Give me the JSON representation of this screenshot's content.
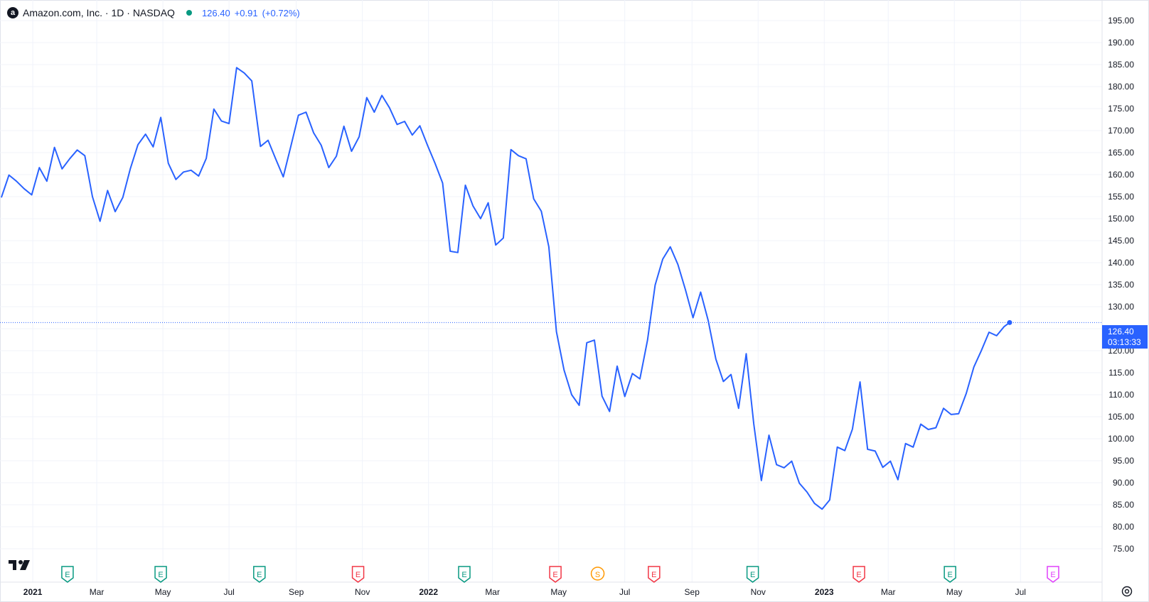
{
  "header": {
    "logo_letter": "a",
    "title": "Amazon.com, Inc. · 1D · NASDAQ",
    "price": "126.40",
    "change": "+0.91",
    "change_pct": "(+0.72%)"
  },
  "price_tag": {
    "price": "126.40",
    "countdown": "03:13:33"
  },
  "colors": {
    "line": "#2962ff",
    "grid": "#f0f3fa",
    "earnings_pos": "#089981",
    "earnings_neg": "#f23645",
    "split": "#ff9800",
    "future": "#e040fb"
  },
  "chart_data": {
    "type": "line",
    "title": "Amazon.com, Inc. · 1D · NASDAQ",
    "xlabel": "",
    "ylabel": "",
    "ylim": [
      75,
      195
    ],
    "yticks": [
      195,
      190,
      185,
      180,
      175,
      170,
      165,
      160,
      155,
      150,
      145,
      140,
      135,
      130,
      125,
      120,
      115,
      110,
      105,
      100,
      95,
      90,
      85,
      80,
      75
    ],
    "ytick_labels": [
      "195.00",
      "190.00",
      "185.00",
      "180.00",
      "175.00",
      "170.00",
      "165.00",
      "160.00",
      "155.00",
      "150.00",
      "145.00",
      "140.00",
      "135.00",
      "130.00",
      "125.00",
      "120.00",
      "115.00",
      "110.00",
      "105.00",
      "100.00",
      "95.00",
      "90.00",
      "85.00",
      "80.00",
      "75.00"
    ],
    "xlim": [
      "2020-12-03",
      "2023-08-01"
    ],
    "xticks": [
      {
        "date": "2021-01-01",
        "label": "2021",
        "bold": true
      },
      {
        "date": "2021-03-01",
        "label": "Mar",
        "bold": false
      },
      {
        "date": "2021-05-01",
        "label": "May",
        "bold": false
      },
      {
        "date": "2021-07-01",
        "label": "Jul",
        "bold": false
      },
      {
        "date": "2021-09-01",
        "label": "Sep",
        "bold": false
      },
      {
        "date": "2021-11-01",
        "label": "Nov",
        "bold": false
      },
      {
        "date": "2022-01-01",
        "label": "2022",
        "bold": true
      },
      {
        "date": "2022-03-01",
        "label": "Mar",
        "bold": false
      },
      {
        "date": "2022-05-01",
        "label": "May",
        "bold": false
      },
      {
        "date": "2022-07-01",
        "label": "Jul",
        "bold": false
      },
      {
        "date": "2022-09-01",
        "label": "Sep",
        "bold": false
      },
      {
        "date": "2022-11-01",
        "label": "Nov",
        "bold": false
      },
      {
        "date": "2023-01-01",
        "label": "2023",
        "bold": true
      },
      {
        "date": "2023-03-01",
        "label": "Mar",
        "bold": false
      },
      {
        "date": "2023-05-01",
        "label": "May",
        "bold": false
      },
      {
        "date": "2023-07-01",
        "label": "Jul",
        "bold": false
      }
    ],
    "last_price": 126.4,
    "series": [
      {
        "values": [
          [
            "2020-12-03",
            154.8
          ],
          [
            "2020-12-10",
            159.9
          ],
          [
            "2020-12-17",
            158.5
          ],
          [
            "2020-12-24",
            156.8
          ],
          [
            "2020-12-31",
            155.4
          ],
          [
            "2021-01-07",
            161.6
          ],
          [
            "2021-01-14",
            158.5
          ],
          [
            "2021-01-21",
            166.2
          ],
          [
            "2021-01-28",
            161.3
          ],
          [
            "2021-02-04",
            163.6
          ],
          [
            "2021-02-11",
            165.6
          ],
          [
            "2021-02-18",
            164.3
          ],
          [
            "2021-02-25",
            155.0
          ],
          [
            "2021-03-04",
            149.4
          ],
          [
            "2021-03-11",
            156.4
          ],
          [
            "2021-03-18",
            151.6
          ],
          [
            "2021-03-25",
            154.8
          ],
          [
            "2021-04-01",
            161.4
          ],
          [
            "2021-04-08",
            166.8
          ],
          [
            "2021-04-15",
            169.2
          ],
          [
            "2021-04-22",
            166.3
          ],
          [
            "2021-04-29",
            173.0
          ],
          [
            "2021-05-06",
            162.6
          ],
          [
            "2021-05-13",
            158.9
          ],
          [
            "2021-05-20",
            160.6
          ],
          [
            "2021-05-27",
            161.0
          ],
          [
            "2021-06-03",
            159.7
          ],
          [
            "2021-06-10",
            163.7
          ],
          [
            "2021-06-17",
            174.9
          ],
          [
            "2021-06-24",
            172.2
          ],
          [
            "2021-07-01",
            171.6
          ],
          [
            "2021-07-08",
            184.3
          ],
          [
            "2021-07-15",
            183.1
          ],
          [
            "2021-07-22",
            181.3
          ],
          [
            "2021-07-30",
            166.4
          ],
          [
            "2021-08-06",
            167.8
          ],
          [
            "2021-08-13",
            163.6
          ],
          [
            "2021-08-20",
            159.5
          ],
          [
            "2021-08-27",
            166.4
          ],
          [
            "2021-09-03",
            173.5
          ],
          [
            "2021-09-10",
            174.2
          ],
          [
            "2021-09-17",
            169.5
          ],
          [
            "2021-09-24",
            166.7
          ],
          [
            "2021-10-01",
            161.6
          ],
          [
            "2021-10-08",
            164.2
          ],
          [
            "2021-10-15",
            171.0
          ],
          [
            "2021-10-22",
            165.3
          ],
          [
            "2021-10-29",
            168.6
          ],
          [
            "2021-11-05",
            177.5
          ],
          [
            "2021-11-12",
            174.2
          ],
          [
            "2021-11-19",
            178.0
          ],
          [
            "2021-11-26",
            175.2
          ],
          [
            "2021-12-03",
            171.4
          ],
          [
            "2021-12-10",
            172.1
          ],
          [
            "2021-12-17",
            169.0
          ],
          [
            "2021-12-24",
            171.1
          ],
          [
            "2021-12-31",
            166.7
          ],
          [
            "2022-01-07",
            162.6
          ],
          [
            "2022-01-14",
            158.1
          ],
          [
            "2022-01-21",
            142.6
          ],
          [
            "2022-01-28",
            142.3
          ],
          [
            "2022-02-04",
            157.6
          ],
          [
            "2022-02-11",
            152.9
          ],
          [
            "2022-02-18",
            150.0
          ],
          [
            "2022-02-25",
            153.6
          ],
          [
            "2022-03-04",
            144.0
          ],
          [
            "2022-03-11",
            145.6
          ],
          [
            "2022-03-18",
            165.7
          ],
          [
            "2022-03-25",
            164.3
          ],
          [
            "2022-04-01",
            163.6
          ],
          [
            "2022-04-08",
            154.5
          ],
          [
            "2022-04-15",
            151.7
          ],
          [
            "2022-04-22",
            143.6
          ],
          [
            "2022-04-29",
            124.3
          ],
          [
            "2022-05-06",
            115.6
          ],
          [
            "2022-05-13",
            110.0
          ],
          [
            "2022-05-20",
            107.6
          ],
          [
            "2022-05-27",
            121.8
          ],
          [
            "2022-06-03",
            122.4
          ],
          [
            "2022-06-10",
            109.7
          ],
          [
            "2022-06-17",
            106.2
          ],
          [
            "2022-06-24",
            116.5
          ],
          [
            "2022-07-01",
            109.6
          ],
          [
            "2022-07-08",
            114.8
          ],
          [
            "2022-07-15",
            113.6
          ],
          [
            "2022-07-22",
            122.4
          ],
          [
            "2022-07-29",
            134.9
          ],
          [
            "2022-08-05",
            140.8
          ],
          [
            "2022-08-12",
            143.6
          ],
          [
            "2022-08-19",
            139.6
          ],
          [
            "2022-08-26",
            133.8
          ],
          [
            "2022-09-02",
            127.5
          ],
          [
            "2022-09-09",
            133.3
          ],
          [
            "2022-09-16",
            126.8
          ],
          [
            "2022-09-23",
            118.1
          ],
          [
            "2022-09-30",
            113.0
          ],
          [
            "2022-10-07",
            114.6
          ],
          [
            "2022-10-14",
            106.9
          ],
          [
            "2022-10-21",
            119.3
          ],
          [
            "2022-10-28",
            103.4
          ],
          [
            "2022-11-04",
            90.5
          ],
          [
            "2022-11-11",
            100.8
          ],
          [
            "2022-11-18",
            94.1
          ],
          [
            "2022-11-25",
            93.4
          ],
          [
            "2022-12-02",
            94.9
          ],
          [
            "2022-12-09",
            89.9
          ],
          [
            "2022-12-16",
            87.9
          ],
          [
            "2022-12-23",
            85.3
          ],
          [
            "2022-12-30",
            84.0
          ],
          [
            "2023-01-06",
            86.1
          ],
          [
            "2023-01-13",
            98.1
          ],
          [
            "2023-01-20",
            97.3
          ],
          [
            "2023-01-27",
            102.2
          ],
          [
            "2023-02-03",
            112.9
          ],
          [
            "2023-02-10",
            97.6
          ],
          [
            "2023-02-17",
            97.2
          ],
          [
            "2023-02-24",
            93.5
          ],
          [
            "2023-03-03",
            94.9
          ],
          [
            "2023-03-10",
            90.7
          ],
          [
            "2023-03-17",
            98.9
          ],
          [
            "2023-03-24",
            98.1
          ],
          [
            "2023-03-31",
            103.3
          ],
          [
            "2023-04-07",
            102.1
          ],
          [
            "2023-04-14",
            102.5
          ],
          [
            "2023-04-21",
            106.9
          ],
          [
            "2023-04-28",
            105.5
          ],
          [
            "2023-05-05",
            105.7
          ],
          [
            "2023-05-12",
            110.3
          ],
          [
            "2023-05-19",
            116.3
          ],
          [
            "2023-05-26",
            120.1
          ],
          [
            "2023-06-02",
            124.2
          ],
          [
            "2023-06-09",
            123.4
          ],
          [
            "2023-06-16",
            125.5
          ],
          [
            "2023-06-21",
            126.4
          ]
        ]
      }
    ],
    "event_markers": [
      {
        "date": "2021-02-02",
        "letter": "E",
        "kind": "earnings_pos"
      },
      {
        "date": "2021-04-29",
        "letter": "E",
        "kind": "earnings_pos"
      },
      {
        "date": "2021-07-29",
        "letter": "E",
        "kind": "earnings_pos"
      },
      {
        "date": "2021-10-28",
        "letter": "E",
        "kind": "earnings_neg"
      },
      {
        "date": "2022-02-03",
        "letter": "E",
        "kind": "earnings_pos"
      },
      {
        "date": "2022-04-28",
        "letter": "E",
        "kind": "earnings_neg"
      },
      {
        "date": "2022-06-06",
        "letter": "S",
        "kind": "split"
      },
      {
        "date": "2022-07-28",
        "letter": "E",
        "kind": "earnings_neg"
      },
      {
        "date": "2022-10-27",
        "letter": "E",
        "kind": "earnings_pos"
      },
      {
        "date": "2023-02-02",
        "letter": "E",
        "kind": "earnings_neg"
      },
      {
        "date": "2023-04-27",
        "letter": "E",
        "kind": "earnings_pos"
      },
      {
        "date": "2023-07-31",
        "letter": "E",
        "kind": "future"
      }
    ]
  }
}
